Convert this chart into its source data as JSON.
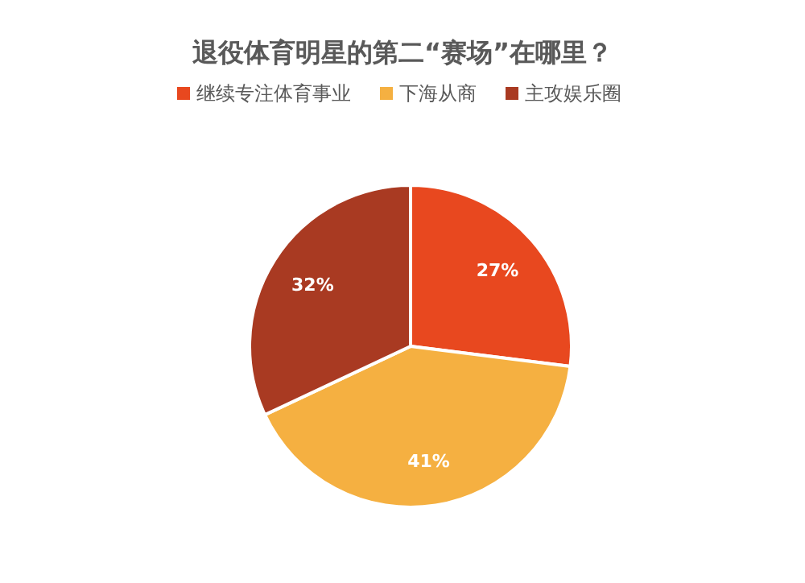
{
  "chart_data": {
    "type": "pie",
    "title": "退役体育明星的第二“赛场”在哪里？",
    "categories": [
      "继续专注体育事业",
      "下海从商",
      "主攻娱乐圈"
    ],
    "values": [
      27,
      41,
      32
    ],
    "colors": [
      "#e8481f",
      "#f5b041",
      "#a93a22"
    ],
    "value_labels": [
      "27%",
      "41%",
      "32%"
    ],
    "legend": "top"
  }
}
